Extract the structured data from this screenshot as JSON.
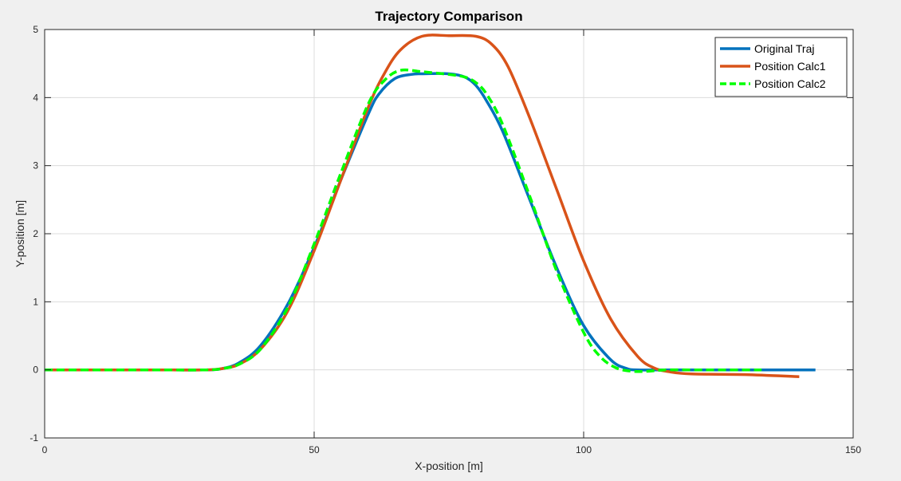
{
  "chart_data": {
    "type": "line",
    "title": "Trajectory Comparison",
    "xlabel": "X-position [m]",
    "ylabel": "Y-position [m]",
    "xlim": [
      0,
      150
    ],
    "ylim": [
      -1,
      5
    ],
    "xticks": [
      0,
      50,
      100,
      150
    ],
    "yticks": [
      -1,
      0,
      1,
      2,
      3,
      4,
      5
    ],
    "grid": true,
    "legend_position": "top-right",
    "series": [
      {
        "name": "Original Traj",
        "color": "#0072BD",
        "style": "solid",
        "x": [
          0,
          10,
          20,
          30,
          33,
          36,
          40,
          45,
          50,
          55,
          60,
          62,
          65,
          68,
          70,
          75,
          78,
          80,
          82,
          85,
          90,
          95,
          100,
          105,
          108,
          110,
          115,
          120,
          130,
          140,
          143
        ],
        "y": [
          0,
          0,
          0,
          0,
          0.02,
          0.1,
          0.35,
          0.95,
          1.8,
          2.8,
          3.75,
          4.05,
          4.28,
          4.34,
          4.35,
          4.35,
          4.3,
          4.18,
          3.95,
          3.5,
          2.5,
          1.5,
          0.65,
          0.15,
          0.02,
          0,
          0,
          0,
          0,
          0,
          0
        ]
      },
      {
        "name": "Position Calc1",
        "color": "#D95319",
        "style": "solid",
        "x": [
          0,
          10,
          20,
          30,
          33,
          36,
          40,
          45,
          50,
          55,
          60,
          63,
          66,
          70,
          75,
          80,
          83,
          86,
          90,
          95,
          100,
          105,
          110,
          113,
          116,
          120,
          130,
          140
        ],
        "y": [
          0,
          0,
          0,
          0,
          0.02,
          0.08,
          0.3,
          0.85,
          1.75,
          2.8,
          3.85,
          4.35,
          4.7,
          4.9,
          4.91,
          4.9,
          4.78,
          4.45,
          3.7,
          2.65,
          1.6,
          0.75,
          0.2,
          0.03,
          -0.03,
          -0.06,
          -0.07,
          -0.1
        ]
      },
      {
        "name": "Position Calc2",
        "color": "#00FF00",
        "style": "dashed",
        "x": [
          0,
          10,
          20,
          30,
          33,
          36,
          40,
          45,
          50,
          55,
          60,
          63,
          66,
          70,
          75,
          78,
          80,
          82,
          85,
          90,
          95,
          100,
          103,
          106,
          109,
          112,
          115,
          120,
          125,
          133
        ],
        "y": [
          0,
          0,
          0,
          0,
          0.02,
          0.08,
          0.3,
          0.9,
          1.85,
          2.9,
          3.9,
          4.25,
          4.4,
          4.38,
          4.34,
          4.3,
          4.22,
          4.05,
          3.6,
          2.55,
          1.45,
          0.55,
          0.2,
          0.03,
          -0.02,
          -0.02,
          0,
          0,
          0,
          0
        ]
      }
    ]
  }
}
